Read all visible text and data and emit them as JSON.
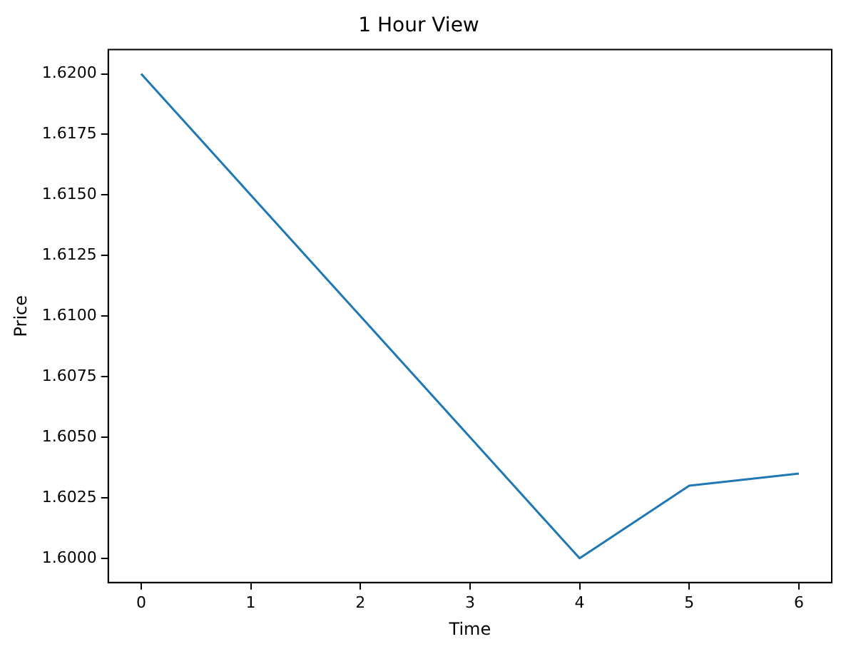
{
  "chart_data": {
    "type": "line",
    "title": "1 Hour View",
    "xlabel": "Time",
    "ylabel": "Price",
    "x": [
      0,
      1,
      2,
      3,
      4,
      5,
      6
    ],
    "series": [
      {
        "color": "#1f77b4",
        "values": [
          1.62,
          1.615,
          1.61,
          1.605,
          1.6,
          1.603,
          1.6035
        ]
      }
    ],
    "xlim": [
      -0.3,
      6.3
    ],
    "xticks": [
      0,
      1,
      2,
      3,
      4,
      5,
      6
    ],
    "ylim": [
      1.599,
      1.621
    ],
    "yticks": [
      {
        "value": 1.6,
        "label": "1.6000"
      },
      {
        "value": 1.6025,
        "label": "1.6025"
      },
      {
        "value": 1.605,
        "label": "1.6050"
      },
      {
        "value": 1.6075,
        "label": "1.6075"
      },
      {
        "value": 1.61,
        "label": "1.6100"
      },
      {
        "value": 1.6125,
        "label": "1.6125"
      },
      {
        "value": 1.615,
        "label": "1.6150"
      },
      {
        "value": 1.6175,
        "label": "1.6175"
      },
      {
        "value": 1.62,
        "label": "1.6200"
      }
    ],
    "grid": false,
    "legend": false,
    "marker": "none",
    "line_style": "solid"
  }
}
